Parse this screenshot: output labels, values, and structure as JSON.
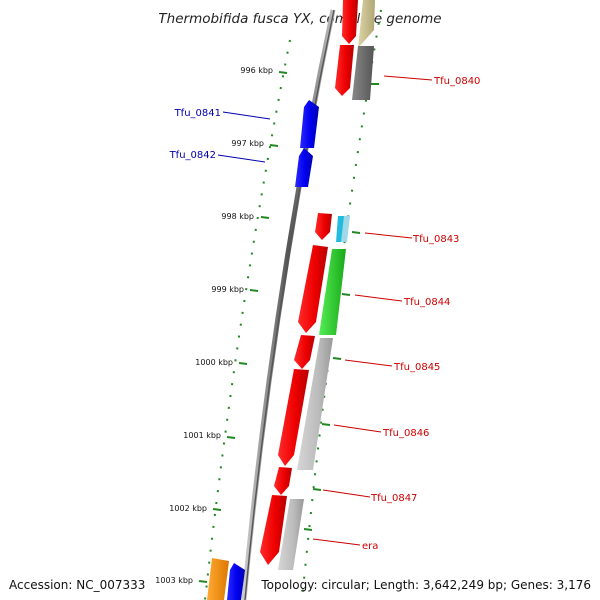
{
  "title": "Thermobifida fusca YX, complete genome",
  "accession": "Accession: NC_007333",
  "topology": "Topology: circular; Length: 3,642,249 bp; Genes: 3,176",
  "ticks": [
    "996 kbp",
    "997 kbp",
    "998 kbp",
    "999 kbp",
    "1000 kbp",
    "1001 kbp",
    "1002 kbp",
    "1003 kbp"
  ],
  "genes": [
    {
      "name": "Tfu_0840",
      "strand": "forward",
      "color": "#cc0000"
    },
    {
      "name": "Tfu_0841",
      "strand": "reverse",
      "color": "#0000aa"
    },
    {
      "name": "Tfu_0842",
      "strand": "reverse",
      "color": "#0000aa"
    },
    {
      "name": "Tfu_0843",
      "strand": "forward",
      "color": "#cc0000"
    },
    {
      "name": "Tfu_0844",
      "strand": "forward",
      "color": "#cc0000"
    },
    {
      "name": "Tfu_0845",
      "strand": "forward",
      "color": "#cc0000"
    },
    {
      "name": "Tfu_0846",
      "strand": "forward",
      "color": "#cc0000"
    },
    {
      "name": "Tfu_0847",
      "strand": "forward",
      "color": "#cc0000"
    },
    {
      "name": "era",
      "strand": "forward",
      "color": "#cc0000"
    }
  ],
  "colors": {
    "forward_cds": "#ff0000",
    "reverse_cds": "#0000ff",
    "orf_gray": "#bbbbbb",
    "orf_dark": "#666666",
    "orf_green": "#22cc22",
    "orf_tan": "#c8be8c",
    "orf_cyan": "#22bbdd",
    "orf_orange": "#ff8800",
    "tick_green": "#228822"
  }
}
